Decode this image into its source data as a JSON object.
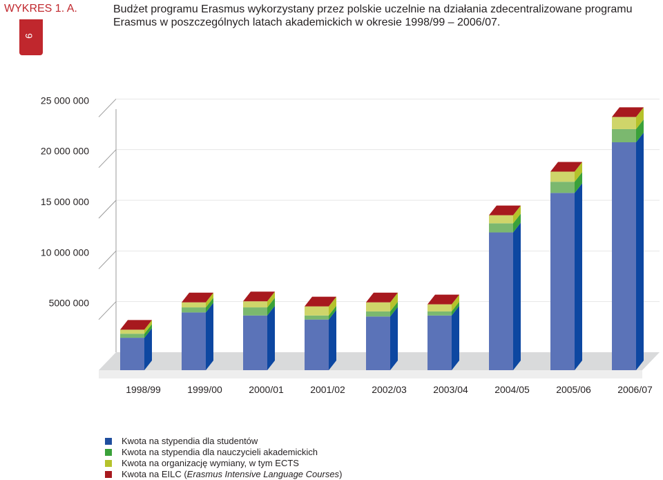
{
  "header": {
    "label": "WYKRES 1. A.",
    "title": "Budżet programu Erasmus wykorzystany przez polskie uczelnie na działania zdecentralizowane programu Erasmus w poszczególnych latach akademickich w okresie 1998/99 – 2006/07."
  },
  "page_number": "9",
  "colors": {
    "brand": "#c0272d",
    "students": "#5b73b8",
    "teachers": "#7bb86f",
    "organization": "#cfd56a",
    "eilc": "#a7191e"
  },
  "legend": {
    "items": [
      {
        "label": "Kwota na stypendia dla studentów"
      },
      {
        "label": "Kwota na stypendia dla nauczycieli akademickich"
      },
      {
        "label": "Kwota na organizację wymiany, w tym ECTS"
      },
      {
        "label": "Kwota na EILC (",
        "label_italic": "Erasmus Intensive Language Courses",
        "label_end": ")"
      }
    ]
  },
  "chart_data": {
    "type": "bar",
    "stacked": true,
    "categories": [
      "1998/99",
      "1999/00",
      "2000/01",
      "2001/02",
      "2002/03",
      "2003/04",
      "2004/05",
      "2005/06",
      "2006/07"
    ],
    "y_ticks": [
      {
        "value": 5000000,
        "label": "5000 000"
      },
      {
        "value": 10000000,
        "label": "10 000 000"
      },
      {
        "value": 15000000,
        "label": "15 000 000"
      },
      {
        "value": 20000000,
        "label": "20 000 000"
      },
      {
        "value": 25000000,
        "label": "25 000 000"
      }
    ],
    "ylim": [
      0,
      27000000
    ],
    "series": [
      {
        "name": "Kwota na stypendia dla studentów",
        "color": "#5b73b8",
        "side": "#0d47a1",
        "values": [
          3200000,
          5700000,
          5400000,
          5000000,
          5300000,
          5400000,
          13600000,
          17500000,
          22500000
        ]
      },
      {
        "name": "Kwota na stypendia dla nauczycieli akademickich",
        "color": "#7bb86f",
        "side": "#3aa13a",
        "values": [
          400000,
          500000,
          800000,
          400000,
          500000,
          400000,
          900000,
          1100000,
          1300000
        ]
      },
      {
        "name": "Kwota na organizację wymiany, w tym ECTS",
        "color": "#cfd56a",
        "side": "#b5c22b",
        "values": [
          400000,
          500000,
          600000,
          900000,
          900000,
          700000,
          800000,
          1000000,
          1200000
        ]
      },
      {
        "name": "Kwota na EILC (Erasmus Intensive Language Courses)",
        "color": "#a7191e",
        "side": "#8c1418",
        "values": [
          0,
          0,
          0,
          0,
          0,
          0,
          0,
          0,
          0
        ]
      }
    ],
    "legend_position": "bottom-left",
    "grid": true
  }
}
